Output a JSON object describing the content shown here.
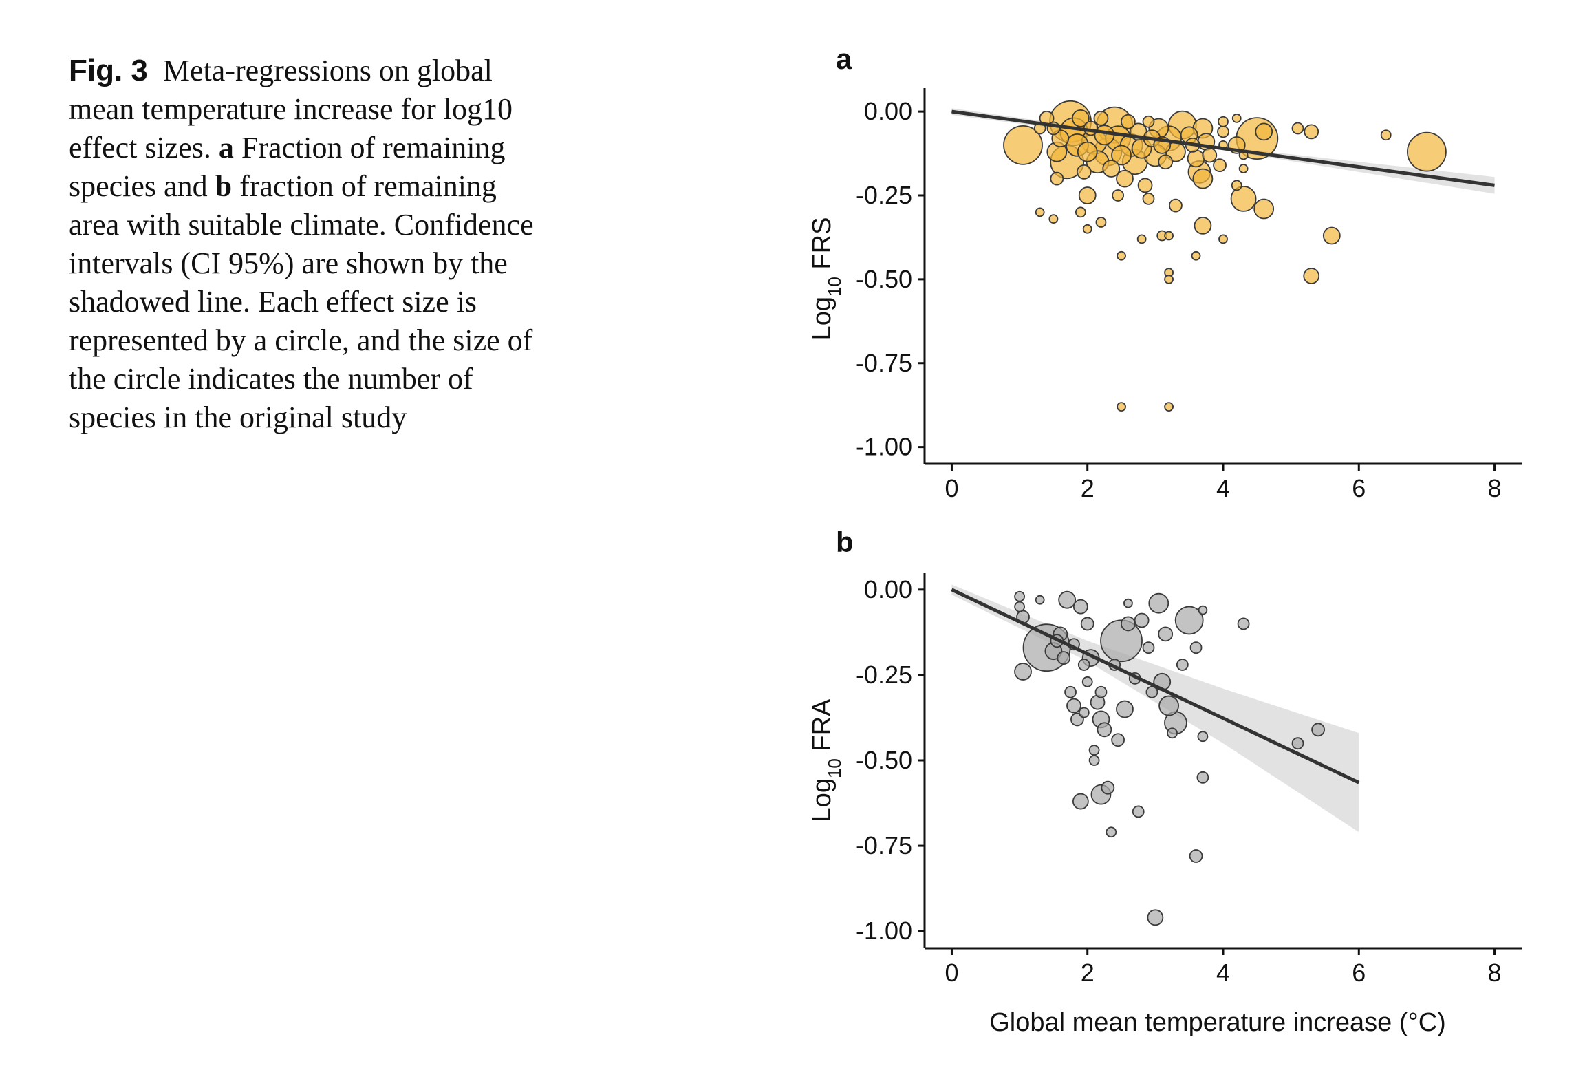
{
  "caption": {
    "fig_label": "Fig. 3",
    "text_1": "Meta-regressions on global mean temperature increase for log10 effect sizes.",
    "panel_a": "a",
    "text_2": "Fraction of remaining species and",
    "panel_b": "b",
    "text_3": "fraction of remaining area with suitable climate. Confidence intervals (CI 95%) are shown by the shadowed line. Each effect size is represented by a circle, and the size of the circle indicates the number of species in the original study"
  },
  "colors": {
    "frs_fill": "#f2b73c",
    "fra_fill": "#a9a9a9",
    "line": "#333333",
    "ci": "#dddddd"
  },
  "chart_data": [
    {
      "type": "scatter",
      "panel_label": "a",
      "ylabel_main": "Log",
      "ylabel_sub": "10",
      "ylabel_tail": " FRS",
      "xlabel": "",
      "xlim": [
        -0.4,
        8.4
      ],
      "ylim": [
        -1.05,
        0.07
      ],
      "xticks": [
        0,
        2,
        4,
        6,
        8
      ],
      "ytick_values": [
        0,
        -0.25,
        -0.5,
        -0.75,
        -1.0
      ],
      "ytick_labels": [
        "0.00",
        "-0.25",
        "-0.50",
        "-0.75",
        "-1.00"
      ],
      "regression": {
        "x": [
          0,
          8
        ],
        "y": [
          0.0,
          -0.22
        ]
      },
      "ci": {
        "x": [
          0,
          4,
          8
        ],
        "upper": [
          0.01,
          -0.105,
          -0.195
        ],
        "lower": [
          -0.01,
          -0.115,
          -0.245
        ]
      },
      "points": [
        [
          1.05,
          -0.1,
          28
        ],
        [
          1.3,
          -0.05,
          8
        ],
        [
          1.4,
          -0.02,
          10
        ],
        [
          1.5,
          -0.05,
          9
        ],
        [
          1.55,
          -0.12,
          14
        ],
        [
          1.6,
          -0.08,
          12
        ],
        [
          1.7,
          -0.15,
          24
        ],
        [
          1.75,
          -0.03,
          30
        ],
        [
          1.8,
          -0.06,
          20
        ],
        [
          1.85,
          -0.1,
          16
        ],
        [
          1.9,
          -0.02,
          12
        ],
        [
          1.95,
          -0.18,
          10
        ],
        [
          2.0,
          -0.12,
          14
        ],
        [
          2.0,
          -0.25,
          12
        ],
        [
          2.05,
          -0.05,
          10
        ],
        [
          2.1,
          -0.09,
          18
        ],
        [
          2.15,
          -0.15,
          16
        ],
        [
          2.2,
          -0.02,
          10
        ],
        [
          2.25,
          -0.07,
          14
        ],
        [
          2.3,
          -0.12,
          20
        ],
        [
          2.35,
          -0.17,
          12
        ],
        [
          2.4,
          -0.04,
          26
        ],
        [
          2.45,
          -0.08,
          18
        ],
        [
          2.5,
          -0.13,
          14
        ],
        [
          2.55,
          -0.2,
          12
        ],
        [
          2.6,
          -0.03,
          10
        ],
        [
          2.65,
          -0.1,
          16
        ],
        [
          2.7,
          -0.15,
          18
        ],
        [
          2.75,
          -0.06,
          12
        ],
        [
          2.8,
          -0.11,
          14
        ],
        [
          2.85,
          -0.22,
          10
        ],
        [
          2.9,
          -0.03,
          8
        ],
        [
          2.95,
          -0.08,
          12
        ],
        [
          3.0,
          -0.13,
          16
        ],
        [
          3.05,
          -0.05,
          14
        ],
        [
          3.1,
          -0.1,
          12
        ],
        [
          3.15,
          -0.15,
          10
        ],
        [
          3.2,
          -0.08,
          18
        ],
        [
          3.3,
          -0.12,
          14
        ],
        [
          3.4,
          -0.04,
          20
        ],
        [
          3.5,
          -0.07,
          12
        ],
        [
          3.55,
          -0.1,
          10
        ],
        [
          3.6,
          -0.14,
          12
        ],
        [
          3.65,
          -0.18,
          16
        ],
        [
          3.7,
          -0.05,
          14
        ],
        [
          3.7,
          -0.2,
          14
        ],
        [
          3.75,
          -0.09,
          12
        ],
        [
          3.8,
          -0.13,
          10
        ],
        [
          4.0,
          -0.06,
          8
        ],
        [
          4.2,
          -0.1,
          12
        ],
        [
          4.3,
          -0.26,
          18
        ],
        [
          4.5,
          -0.08,
          30
        ],
        [
          4.6,
          -0.06,
          12
        ],
        [
          4.6,
          -0.29,
          14
        ],
        [
          5.1,
          -0.05,
          8
        ],
        [
          5.3,
          -0.06,
          10
        ],
        [
          5.6,
          -0.37,
          12
        ],
        [
          6.4,
          -0.07,
          7
        ],
        [
          7.0,
          -0.12,
          28
        ],
        [
          1.3,
          -0.3,
          6
        ],
        [
          1.5,
          -0.32,
          6
        ],
        [
          1.9,
          -0.3,
          7
        ],
        [
          2.0,
          -0.35,
          6
        ],
        [
          2.2,
          -0.33,
          7
        ],
        [
          2.5,
          -0.43,
          6
        ],
        [
          2.8,
          -0.38,
          6
        ],
        [
          3.1,
          -0.37,
          7
        ],
        [
          3.2,
          -0.37,
          6
        ],
        [
          3.2,
          -0.48,
          6
        ],
        [
          3.2,
          -0.5,
          6
        ],
        [
          3.6,
          -0.43,
          6
        ],
        [
          3.7,
          -0.34,
          12
        ],
        [
          4.0,
          -0.38,
          6
        ],
        [
          4.2,
          -0.22,
          7
        ],
        [
          5.3,
          -0.49,
          11
        ],
        [
          2.5,
          -0.88,
          6
        ],
        [
          3.2,
          -0.88,
          6
        ],
        [
          4.0,
          -0.03,
          7
        ],
        [
          4.0,
          -0.1,
          6
        ],
        [
          4.2,
          -0.02,
          6
        ],
        [
          4.3,
          -0.17,
          6
        ],
        [
          4.3,
          -0.13,
          6
        ],
        [
          3.3,
          -0.28,
          9
        ],
        [
          2.9,
          -0.26,
          8
        ],
        [
          1.55,
          -0.2,
          9
        ],
        [
          2.45,
          -0.25,
          8
        ],
        [
          3.95,
          -0.16,
          9
        ]
      ]
    },
    {
      "type": "scatter",
      "panel_label": "b",
      "ylabel_main": "Log",
      "ylabel_sub": "10",
      "ylabel_tail": " FRA",
      "xlabel": "Global mean temperature increase (°C)",
      "xlim": [
        -0.4,
        8.4
      ],
      "ylim": [
        -1.05,
        0.05
      ],
      "xticks": [
        0,
        2,
        4,
        6,
        8
      ],
      "ytick_values": [
        0,
        -0.25,
        -0.5,
        -0.75,
        -1.0
      ],
      "ytick_labels": [
        "0.00",
        "-0.25",
        "-0.50",
        "-0.75",
        "-1.00"
      ],
      "regression": {
        "x": [
          0,
          6
        ],
        "y": [
          0.0,
          -0.565
        ]
      },
      "ci": {
        "x": [
          0,
          2,
          4,
          6
        ],
        "upper": [
          0.015,
          -0.15,
          -0.29,
          -0.42
        ],
        "lower": [
          -0.015,
          -0.21,
          -0.45,
          -0.71
        ]
      },
      "points": [
        [
          1.0,
          -0.02,
          7
        ],
        [
          1.0,
          -0.05,
          7
        ],
        [
          1.05,
          -0.08,
          9
        ],
        [
          1.05,
          -0.24,
          12
        ],
        [
          1.3,
          -0.03,
          6
        ],
        [
          1.4,
          -0.17,
          34
        ],
        [
          1.5,
          -0.18,
          12
        ],
        [
          1.6,
          -0.13,
          10
        ],
        [
          1.65,
          -0.2,
          9
        ],
        [
          1.7,
          -0.03,
          12
        ],
        [
          1.75,
          -0.3,
          8
        ],
        [
          1.8,
          -0.34,
          10
        ],
        [
          1.85,
          -0.38,
          9
        ],
        [
          1.9,
          -0.05,
          10
        ],
        [
          1.9,
          -0.62,
          11
        ],
        [
          1.95,
          -0.22,
          8
        ],
        [
          2.0,
          -0.1,
          9
        ],
        [
          2.0,
          -0.27,
          7
        ],
        [
          2.05,
          -0.2,
          12
        ],
        [
          2.1,
          -0.47,
          7
        ],
        [
          2.1,
          -0.5,
          7
        ],
        [
          2.15,
          -0.33,
          10
        ],
        [
          2.2,
          -0.6,
          14
        ],
        [
          2.2,
          -0.38,
          12
        ],
        [
          2.25,
          -0.41,
          10
        ],
        [
          2.3,
          -0.58,
          9
        ],
        [
          2.35,
          -0.71,
          7
        ],
        [
          2.4,
          -0.22,
          8
        ],
        [
          2.45,
          -0.44,
          9
        ],
        [
          2.5,
          -0.15,
          30
        ],
        [
          2.55,
          -0.35,
          12
        ],
        [
          2.6,
          -0.1,
          10
        ],
        [
          2.6,
          -0.04,
          6
        ],
        [
          2.7,
          -0.26,
          8
        ],
        [
          2.75,
          -0.65,
          8
        ],
        [
          2.8,
          -0.09,
          10
        ],
        [
          2.9,
          -0.17,
          8
        ],
        [
          3.0,
          -0.96,
          11
        ],
        [
          3.05,
          -0.04,
          14
        ],
        [
          3.1,
          -0.27,
          12
        ],
        [
          3.15,
          -0.13,
          10
        ],
        [
          3.2,
          -0.34,
          14
        ],
        [
          3.3,
          -0.39,
          16
        ],
        [
          3.4,
          -0.22,
          8
        ],
        [
          3.5,
          -0.09,
          20
        ],
        [
          3.6,
          -0.78,
          9
        ],
        [
          3.6,
          -0.17,
          8
        ],
        [
          3.7,
          -0.43,
          7
        ],
        [
          3.7,
          -0.55,
          8
        ],
        [
          3.7,
          -0.06,
          6
        ],
        [
          4.3,
          -0.1,
          8
        ],
        [
          5.1,
          -0.45,
          8
        ],
        [
          5.4,
          -0.41,
          9
        ],
        [
          1.95,
          -0.36,
          7
        ],
        [
          2.2,
          -0.3,
          8
        ],
        [
          3.25,
          -0.42,
          7
        ],
        [
          2.95,
          -0.3,
          8
        ],
        [
          1.55,
          -0.15,
          9
        ],
        [
          1.8,
          -0.16,
          8
        ]
      ]
    }
  ]
}
